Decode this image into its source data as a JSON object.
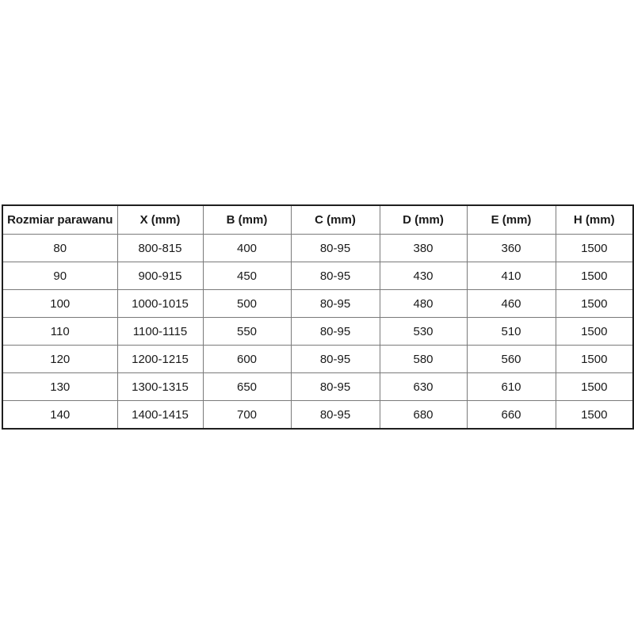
{
  "table": {
    "columns": [
      "Rozmiar parawanu",
      "X (mm)",
      "B (mm)",
      "C (mm)",
      "D (mm)",
      "E (mm)",
      "H (mm)"
    ],
    "rows": [
      [
        "80",
        "800-815",
        "400",
        "80-95",
        "380",
        "360",
        "1500"
      ],
      [
        "90",
        "900-915",
        "450",
        "80-95",
        "430",
        "410",
        "1500"
      ],
      [
        "100",
        "1000-1015",
        "500",
        "80-95",
        "480",
        "460",
        "1500"
      ],
      [
        "110",
        "1100-1115",
        "550",
        "80-95",
        "530",
        "510",
        "1500"
      ],
      [
        "120",
        "1200-1215",
        "600",
        "80-95",
        "580",
        "560",
        "1500"
      ],
      [
        "130",
        "1300-1315",
        "650",
        "80-95",
        "630",
        "610",
        "1500"
      ],
      [
        "140",
        "1400-1415",
        "700",
        "80-95",
        "680",
        "660",
        "1500"
      ]
    ],
    "colors": {
      "outer_border": "#1f1f1f",
      "inner_border": "#7a7a7a",
      "text": "#1a1a1a",
      "background": "#ffffff"
    }
  }
}
